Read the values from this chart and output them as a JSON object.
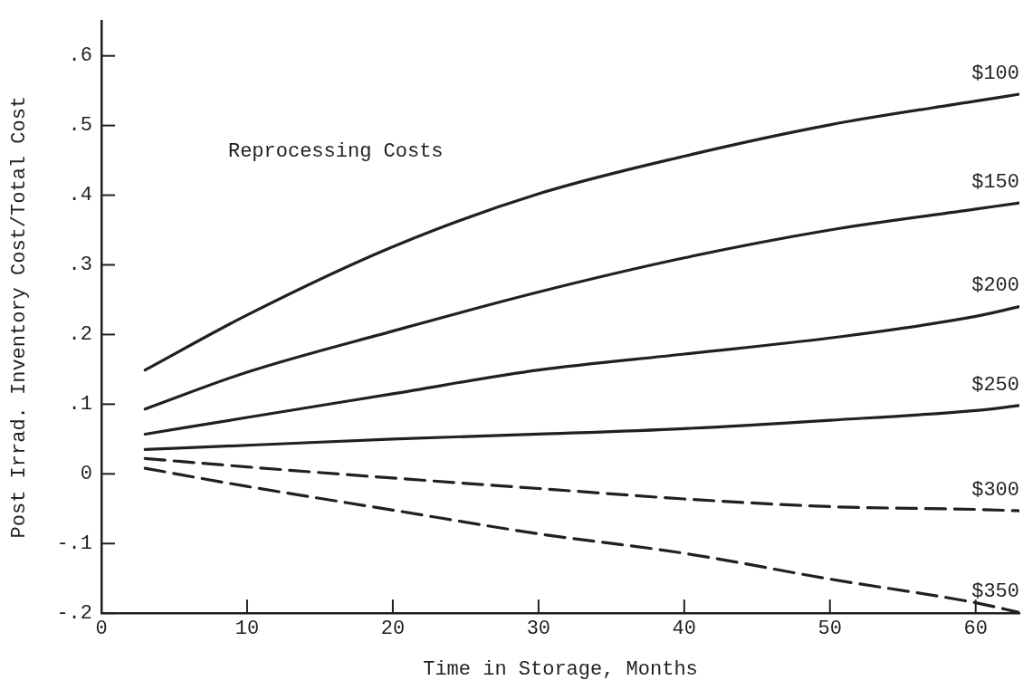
{
  "chart_data": {
    "type": "line",
    "xlabel": "Time in Storage, Months",
    "ylabel": "Post Irrad. Inventory Cost/Total Cost",
    "legend_title": "Reprocessing Costs",
    "x": [
      3,
      10,
      20,
      30,
      40,
      50,
      60,
      63
    ],
    "xlim": [
      0,
      63
    ],
    "xticks": [
      0,
      10,
      20,
      30,
      40,
      50,
      60
    ],
    "ylim": [
      -0.2,
      0.65
    ],
    "yticks": [
      {
        "value": -0.2,
        "label": "-.2"
      },
      {
        "value": -0.1,
        "label": "-.1"
      },
      0,
      {
        "value": 0.1,
        "label": ".1"
      },
      {
        "value": 0.2,
        "label": ".2"
      },
      {
        "value": 0.3,
        "label": ".3"
      },
      {
        "value": 0.4,
        "label": ".4"
      },
      {
        "value": 0.5,
        "label": ".5"
      },
      {
        "value": 0.6,
        "label": ".6"
      }
    ],
    "grid": false,
    "legend": false,
    "marker": "none",
    "series": [
      {
        "name": "$100",
        "color": "#231f1c",
        "line_style": "solid",
        "values": [
          0.149,
          0.228,
          0.326,
          0.402,
          0.456,
          0.501,
          0.535,
          0.545
        ]
      },
      {
        "name": "$150",
        "color": "#231f1c",
        "line_style": "solid",
        "values": [
          0.093,
          0.146,
          0.205,
          0.261,
          0.31,
          0.35,
          0.38,
          0.389
        ]
      },
      {
        "name": "$200",
        "color": "#231f1c",
        "line_style": "solid",
        "values": [
          0.057,
          0.081,
          0.115,
          0.149,
          0.172,
          0.195,
          0.226,
          0.24
        ]
      },
      {
        "name": "$250",
        "color": "#231f1c",
        "line_style": "solid",
        "values": [
          0.035,
          0.041,
          0.05,
          0.057,
          0.065,
          0.077,
          0.091,
          0.098
        ]
      },
      {
        "name": "$300",
        "color": "#231f1c",
        "line_style": "dashed",
        "values": [
          0.022,
          0.01,
          -0.006,
          -0.021,
          -0.036,
          -0.047,
          -0.051,
          -0.053
        ]
      },
      {
        "name": "$350",
        "color": "#231f1c",
        "line_style": "dashed",
        "values": [
          0.008,
          -0.018,
          -0.052,
          -0.086,
          -0.114,
          -0.151,
          -0.185,
          -0.199
        ]
      }
    ]
  }
}
